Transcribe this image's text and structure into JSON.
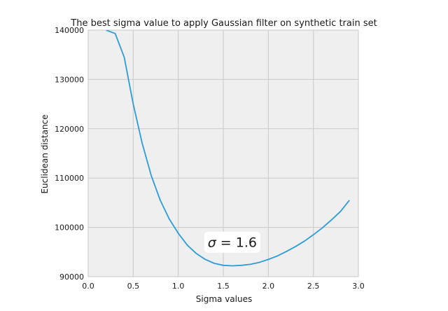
{
  "chart_data": {
    "type": "line",
    "title": "The best sigma value to apply Gaussian filter on synthetic train set",
    "xlabel": "Sigma values",
    "ylabel": "Euclidean distance",
    "xlim": [
      0.0,
      3.0
    ],
    "ylim": [
      90000,
      140000
    ],
    "xticks": [
      0.0,
      0.5,
      1.0,
      1.5,
      2.0,
      2.5,
      3.0
    ],
    "xtick_labels": [
      "0.0",
      "0.5",
      "1.0",
      "1.5",
      "2.0",
      "2.5",
      "3.0"
    ],
    "yticks": [
      90000,
      100000,
      110000,
      120000,
      130000,
      140000
    ],
    "ytick_labels": [
      "90000",
      "100000",
      "110000",
      "120000",
      "130000",
      "140000"
    ],
    "grid": true,
    "background": "#efefef",
    "grid_color": "#c9c9c9",
    "series": [
      {
        "color": "#2b9cd8",
        "x": [
          0.2,
          0.3,
          0.4,
          0.5,
          0.6,
          0.7,
          0.8,
          0.9,
          1.0,
          1.1,
          1.2,
          1.3,
          1.4,
          1.5,
          1.6,
          1.7,
          1.8,
          1.9,
          2.0,
          2.1,
          2.2,
          2.3,
          2.4,
          2.5,
          2.6,
          2.7,
          2.8,
          2.9
        ],
        "values": [
          140000,
          139300,
          134500,
          125000,
          117000,
          110500,
          105500,
          101700,
          98800,
          96400,
          94700,
          93500,
          92700,
          92300,
          92200,
          92300,
          92500,
          92900,
          93500,
          94200,
          95100,
          96100,
          97200,
          98500,
          99900,
          101500,
          103200,
          105500
        ]
      }
    ],
    "annotation": {
      "symbol": "σ",
      "text": " = 1.6",
      "x": 1.6,
      "y": 97000,
      "box_color": "#ffffff"
    }
  }
}
